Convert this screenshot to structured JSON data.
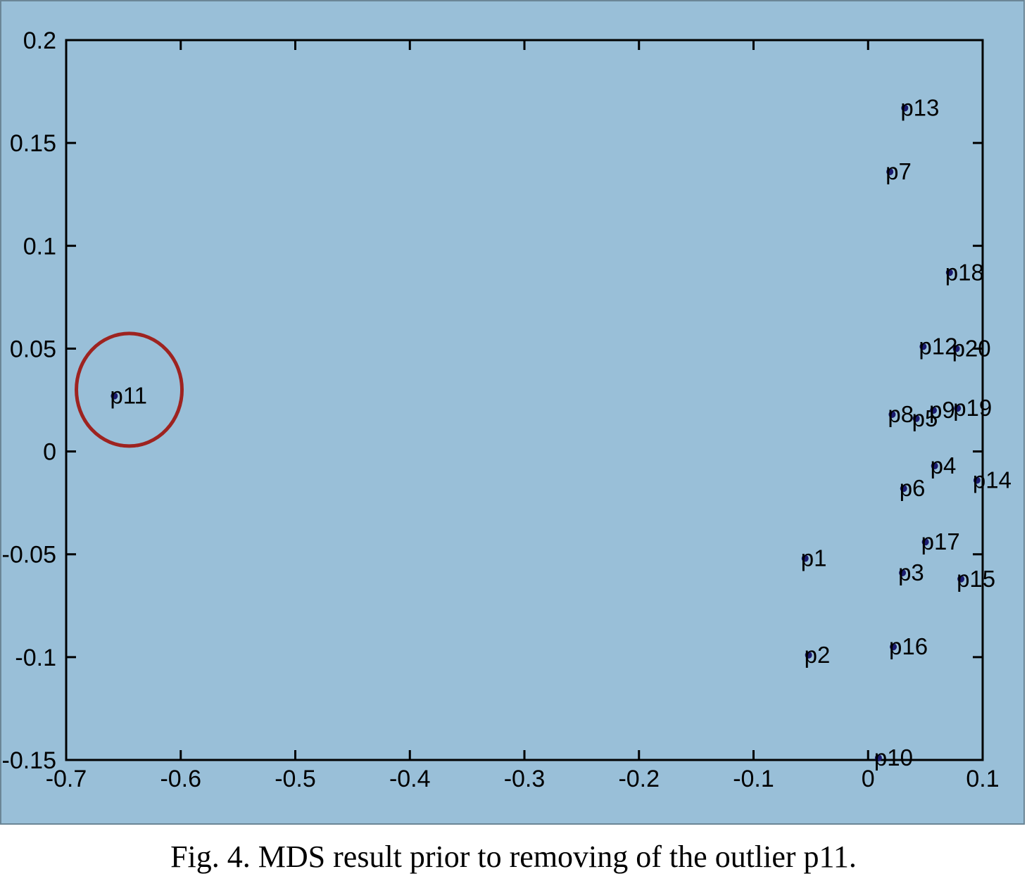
{
  "caption": "Fig. 4. MDS result prior to removing of the outlier p11.",
  "colors": {
    "panel_background": "#99bfd8",
    "plot_background": "#99bfd8",
    "axis": "#000000",
    "marker": "#1a1a6e",
    "highlight_circle": "#9e2320"
  },
  "chart_data": {
    "type": "scatter",
    "title": "",
    "xlabel": "",
    "ylabel": "",
    "xlim": [
      -0.7,
      0.1
    ],
    "ylim": [
      -0.15,
      0.2
    ],
    "xticks": [
      -0.7,
      -0.6,
      -0.5,
      -0.4,
      -0.3,
      -0.2,
      -0.1,
      0,
      0.1
    ],
    "yticks": [
      -0.15,
      -0.1,
      -0.05,
      0,
      0.05,
      0.1,
      0.15,
      0.2
    ],
    "xtick_labels": [
      "-0.7",
      "-0.6",
      "-0.5",
      "-0.4",
      "-0.3",
      "-0.2",
      "-0.1",
      "0",
      "0.1"
    ],
    "ytick_labels": [
      "-0.15",
      "-0.1",
      "-0.05",
      "0",
      "0.05",
      "0.1",
      "0.15",
      "0.2"
    ],
    "grid": false,
    "points": [
      {
        "label": "p1",
        "x": -0.055,
        "y": -0.052
      },
      {
        "label": "p2",
        "x": -0.052,
        "y": -0.099
      },
      {
        "label": "p3",
        "x": 0.03,
        "y": -0.059
      },
      {
        "label": "p4",
        "x": 0.058,
        "y": -0.007
      },
      {
        "label": "p5",
        "x": 0.042,
        "y": 0.016
      },
      {
        "label": "p6",
        "x": 0.031,
        "y": -0.018
      },
      {
        "label": "p7",
        "x": 0.019,
        "y": 0.136
      },
      {
        "label": "p8",
        "x": 0.021,
        "y": 0.018
      },
      {
        "label": "p9",
        "x": 0.057,
        "y": 0.02
      },
      {
        "label": "p10",
        "x": 0.009,
        "y": -0.149
      },
      {
        "label": "p11",
        "x": -0.658,
        "y": 0.027
      },
      {
        "label": "p12",
        "x": 0.048,
        "y": 0.051
      },
      {
        "label": "p13",
        "x": 0.032,
        "y": 0.167
      },
      {
        "label": "p14",
        "x": 0.095,
        "y": -0.014
      },
      {
        "label": "p15",
        "x": 0.081,
        "y": -0.062
      },
      {
        "label": "p16",
        "x": 0.022,
        "y": -0.095
      },
      {
        "label": "p17",
        "x": 0.05,
        "y": -0.044
      },
      {
        "label": "p18",
        "x": 0.071,
        "y": 0.087
      },
      {
        "label": "p19",
        "x": 0.078,
        "y": 0.021
      },
      {
        "label": "p20",
        "x": 0.077,
        "y": 0.05
      }
    ],
    "highlight": {
      "label": "p11",
      "x": -0.645,
      "y": 0.03
    }
  }
}
